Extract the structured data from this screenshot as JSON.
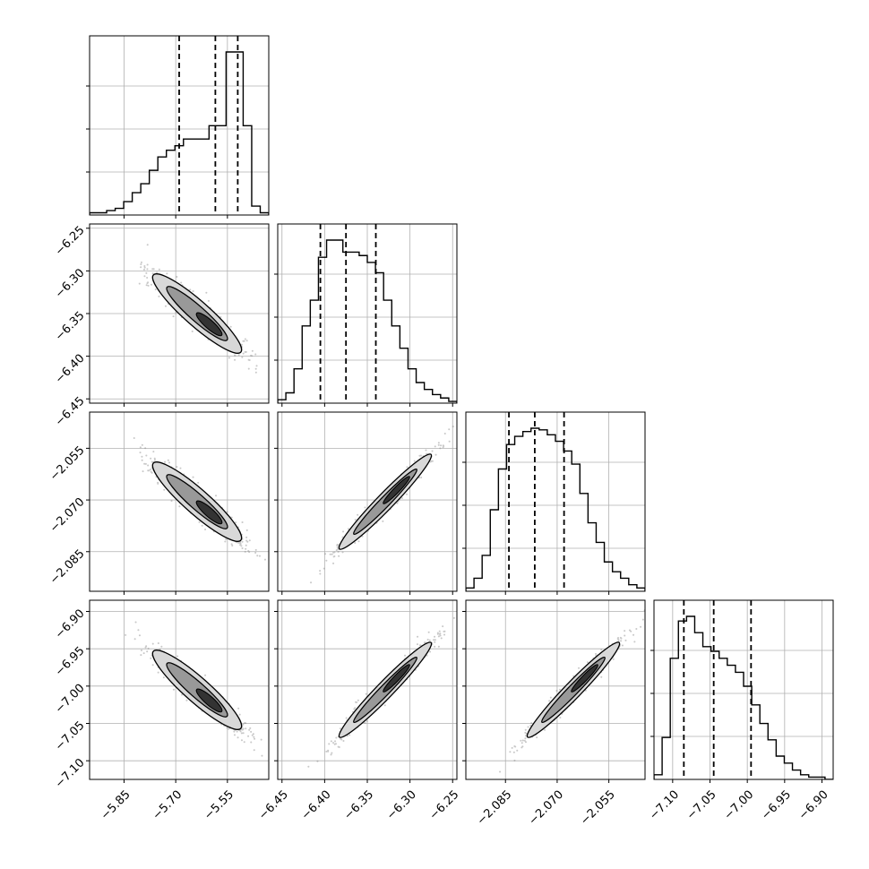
{
  "chart_data": {
    "type": "corner",
    "parameters": [
      {
        "range": [
          -5.95,
          -5.43
        ],
        "ticks": [
          -5.85,
          -5.7,
          -5.55
        ],
        "tick_labels": [
          "−5.85",
          "−5.70",
          "−5.55"
        ],
        "quantiles": [
          -5.69,
          -5.585,
          -5.52
        ],
        "hist": [
          1,
          1,
          2,
          3,
          6,
          10,
          14,
          20,
          26,
          29,
          31,
          34,
          34,
          34,
          40,
          40,
          73,
          73,
          40,
          4,
          1
        ]
      },
      {
        "range": [
          -6.455,
          -6.245
        ],
        "ticks": [
          -6.45,
          -6.4,
          -6.35,
          -6.3,
          -6.25
        ],
        "tick_labels": [
          "−6.45",
          "−6.40",
          "−6.35",
          "−6.30",
          "−6.25"
        ],
        "quantiles": [
          -6.405,
          -6.375,
          -6.34
        ],
        "hist": [
          2,
          6,
          20,
          45,
          60,
          85,
          95,
          95,
          88,
          88,
          86,
          82,
          76,
          60,
          45,
          32,
          20,
          12,
          8,
          5,
          3,
          1
        ]
      },
      {
        "range": [
          -2.0965,
          -2.0445
        ],
        "ticks": [
          -2.085,
          -2.07,
          -2.055
        ],
        "tick_labels": [
          "−2.085",
          "−2.070",
          "−2.055"
        ],
        "quantiles": [
          -2.084,
          -2.0765,
          -2.068
        ],
        "hist": [
          2,
          8,
          22,
          50,
          75,
          90,
          95,
          98,
          100,
          99,
          96,
          92,
          86,
          78,
          60,
          42,
          30,
          18,
          12,
          8,
          4,
          2
        ]
      },
      {
        "range": [
          -7.125,
          -6.885
        ],
        "ticks": [
          -7.1,
          -7.05,
          -7.0,
          -6.95,
          -6.9
        ],
        "tick_labels": [
          "−7.10",
          "−7.05",
          "−7.00",
          "−6.95",
          "−6.90"
        ],
        "quantiles": [
          -7.085,
          -7.045,
          -6.995
        ],
        "hist": [
          2,
          18,
          52,
          68,
          70,
          63,
          57,
          55,
          52,
          49,
          46,
          40,
          32,
          24,
          17,
          10,
          7,
          4,
          2,
          1,
          1,
          0
        ]
      }
    ],
    "left_tick_labels": {
      "row1": [
        "−6.25",
        "−6.30",
        "−6.35",
        "−6.40",
        "−6.45"
      ],
      "row2": [
        "−2.055",
        "−2.070",
        "−2.085"
      ],
      "row3": [
        "−6.90",
        "−6.95",
        "−7.00",
        "−7.05",
        "−7.10"
      ]
    },
    "grid": true,
    "colors": {
      "line": "#000000",
      "grid": "#b0b0b0",
      "points": "#888888",
      "fill_light": "#d8d8d8",
      "fill_mid": "#999999",
      "fill_dark": "#333333"
    }
  }
}
